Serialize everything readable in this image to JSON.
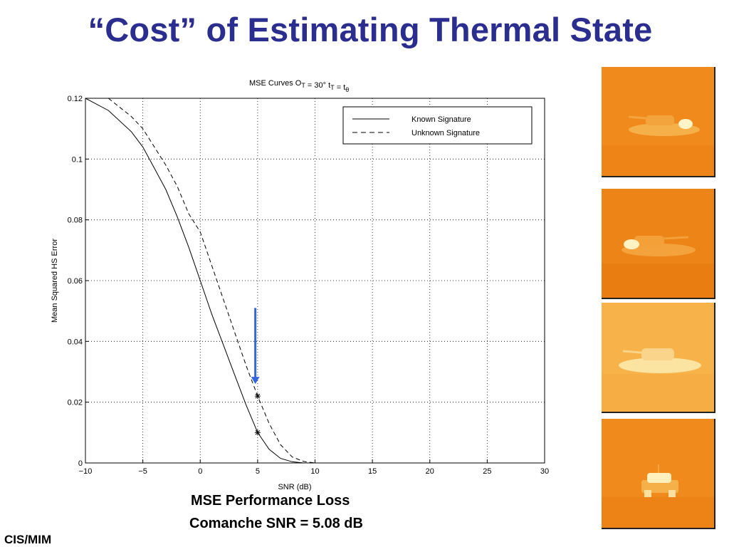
{
  "slide": {
    "title": "“Cost” of Estimating Thermal State",
    "caption_line1": "MSE Performance Loss",
    "caption_line2": "Comanche SNR  = 5.08 dB",
    "footer": "CIS/MIM"
  },
  "chart_data": {
    "type": "line",
    "title": "MSE Curves",
    "title_formula": "O_T = 30°  t_T = t_θ",
    "xlabel": "SNR (dB)",
    "ylabel": "Mean Squared HS Error",
    "xlim": [
      -10,
      30
    ],
    "ylim": [
      0,
      0.12
    ],
    "xticks": [
      -10,
      -5,
      0,
      5,
      10,
      15,
      20,
      25,
      30
    ],
    "yticks": [
      0,
      0.02,
      0.04,
      0.06,
      0.08,
      0.1,
      0.12
    ],
    "xtick_labels": [
      "−10",
      "−5",
      "0",
      "5",
      "10",
      "15",
      "20",
      "25",
      "30"
    ],
    "ytick_labels": [
      "0",
      "0.02",
      "0.04",
      "0.06",
      "0.08",
      "0.1",
      "0.12"
    ],
    "grid": true,
    "legend_position": "top-right",
    "series": [
      {
        "name": "Known Signature",
        "style": "solid",
        "x": [
          -10,
          -8,
          -6,
          -5,
          -4,
          -3,
          -2,
          -1,
          0,
          1,
          2,
          3,
          4,
          5,
          6,
          7,
          8,
          9,
          10,
          12,
          14,
          16.3
        ],
        "y": [
          0.12,
          0.116,
          0.109,
          0.104,
          0.097,
          0.09,
          0.081,
          0.071,
          0.06,
          0.049,
          0.039,
          0.029,
          0.019,
          0.01,
          0.0045,
          0.0015,
          0.0004,
          0.0,
          0.0,
          0.0,
          0.0,
          0.0
        ]
      },
      {
        "name": "Unknown Signature",
        "style": "dashed",
        "x": [
          -8,
          -6,
          -5,
          -4,
          -3,
          -2,
          -1,
          0,
          1,
          2,
          3,
          4,
          5,
          6,
          7,
          8,
          9,
          10,
          12,
          14,
          16.3
        ],
        "y": [
          0.12,
          0.114,
          0.11,
          0.104,
          0.098,
          0.091,
          0.082,
          0.076,
          0.065,
          0.054,
          0.043,
          0.032,
          0.022,
          0.013,
          0.006,
          0.002,
          0.0005,
          0.0,
          0.0,
          0.0,
          0.0
        ]
      }
    ],
    "markers": [
      {
        "series": "Known Signature",
        "x": 5,
        "y": 0.01,
        "symbol": "*"
      },
      {
        "series": "Unknown Signature",
        "x": 5,
        "y": 0.022,
        "symbol": "*"
      }
    ],
    "annotation_arrow": {
      "x": 4.8,
      "y_from": 0.051,
      "y_to": 0.026,
      "color": "#3366dd"
    }
  },
  "thumbnails": [
    {
      "bg": "#f08a1c"
    },
    {
      "bg": "#ec8418"
    },
    {
      "bg": "#f7b24a"
    },
    {
      "bg": "#f08a1c"
    }
  ]
}
